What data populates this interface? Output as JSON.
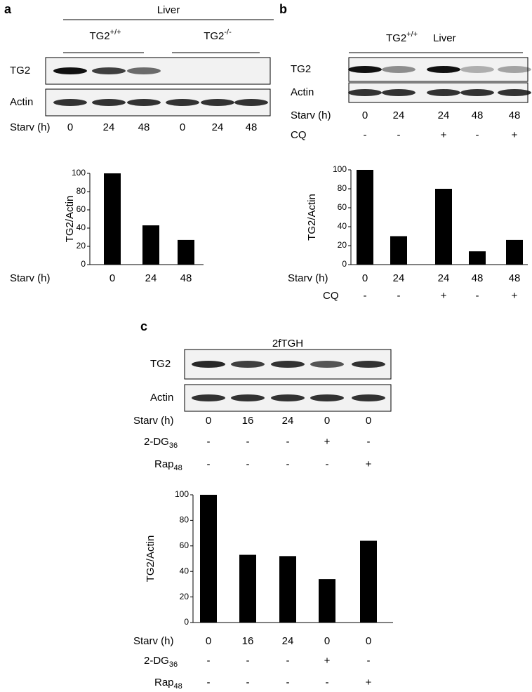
{
  "panel_labels": [
    "a",
    "b",
    "c"
  ],
  "blots": [
    {
      "header": "Liver",
      "groups": [
        {
          "text": "TG2",
          "sup": "+/+"
        },
        {
          "text": "TG2",
          "sup": "-/-"
        }
      ],
      "rows": [
        "TG2",
        "Actin"
      ],
      "conditions": [
        {
          "label": "Starv (h)",
          "values": [
            "0",
            "24",
            "48",
            "0",
            "24",
            "48"
          ]
        }
      ]
    },
    {
      "header": {
        "text": "TG2",
        "sup": "+/+",
        "after": "Liver"
      },
      "groups": [],
      "rows": [
        "TG2",
        "Actin"
      ],
      "conditions": [
        {
          "label": "Starv (h)",
          "values": [
            "0",
            "24",
            "24",
            "48",
            "48"
          ]
        },
        {
          "label": "CQ",
          "values": [
            "-",
            "-",
            "+",
            "-",
            "+"
          ]
        }
      ]
    },
    {
      "header": "2fTGH",
      "groups": [],
      "rows": [
        "TG2",
        "Actin"
      ],
      "conditions": [
        {
          "label": "Starv (h)",
          "values": [
            "0",
            "16",
            "24",
            "0",
            "0"
          ]
        },
        {
          "label": {
            "text": "2-DG",
            "sub": "36"
          },
          "values": [
            "-",
            "-",
            "-",
            "+",
            "-"
          ]
        },
        {
          "label": {
            "text": "Rap",
            "sub": "48"
          },
          "values": [
            "-",
            "-",
            "-",
            "-",
            "+"
          ]
        }
      ]
    }
  ],
  "chart_data": [
    {
      "type": "bar",
      "ylabel": "TG2/Actin",
      "xlabel": "Starv (h)",
      "categories": [
        "0",
        "24",
        "48"
      ],
      "values": [
        100,
        43,
        27
      ],
      "color": "#000000",
      "ylim": [
        0,
        100
      ],
      "yticks": [
        0,
        20,
        40,
        60,
        80,
        100
      ],
      "extra_rows": []
    },
    {
      "type": "bar",
      "ylabel": "TG2/Actin",
      "xlabel": "Starv (h)",
      "categories": [
        "0",
        "24",
        "24",
        "48",
        "48"
      ],
      "values": [
        100,
        30,
        80,
        14,
        26
      ],
      "color": "#000000",
      "ylim": [
        0,
        100
      ],
      "yticks": [
        0,
        20,
        40,
        60,
        80,
        100
      ],
      "extra_rows": [
        {
          "label": "CQ",
          "values": [
            "-",
            "-",
            "+",
            "-",
            "+"
          ]
        }
      ]
    },
    {
      "type": "bar",
      "ylabel": "TG2/Actin",
      "xlabel": "Starv (h)",
      "categories": [
        "0",
        "16",
        "24",
        "0",
        "0"
      ],
      "values": [
        100,
        53,
        52,
        34,
        64
      ],
      "color": "#000000",
      "ylim": [
        0,
        100
      ],
      "yticks": [
        0,
        20,
        40,
        60,
        80,
        100
      ],
      "extra_rows": [
        {
          "label": {
            "text": "2-DG",
            "sub": "36"
          },
          "values": [
            "-",
            "-",
            "-",
            "+",
            "-"
          ]
        },
        {
          "label": {
            "text": "Rap",
            "sub": "48"
          },
          "values": [
            "-",
            "-",
            "-",
            "-",
            "+"
          ]
        }
      ]
    }
  ]
}
